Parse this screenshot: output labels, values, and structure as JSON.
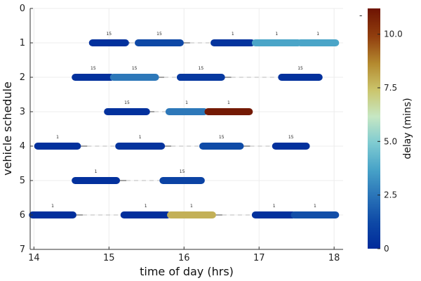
{
  "colors": {
    "scale": [
      "#002a9a",
      "#0e49a6",
      "#2a74b8",
      "#48a3c8",
      "#7fcbd1",
      "#c6e7c3",
      "#cbc56c",
      "#b48a2f",
      "#92400f",
      "#6e1302"
    ],
    "connector": "#c8c8c8",
    "grid": "#ececec",
    "axis": "#333333"
  },
  "chart_data": {
    "type": "gantt",
    "xlabel": "time of day (hrs)",
    "ylabel": "vehicle schedule",
    "xlim": [
      13.95,
      18.12
    ],
    "ylim": [
      0,
      7
    ],
    "xticks": [
      14,
      15,
      16,
      17,
      18
    ],
    "yticks": [
      0,
      1,
      2,
      3,
      4,
      5,
      6,
      7
    ],
    "grid": true,
    "colorbar": {
      "label": "delay (mins)",
      "range": [
        0,
        11.2
      ],
      "ticks": [
        0,
        2.5,
        5.0,
        7.5,
        10.0
      ],
      "tick_labels": [
        "0",
        "2.5",
        "5.0",
        "7.5",
        "10.0"
      ],
      "top_marker": "-"
    },
    "segments": [
      {
        "vehicle": 1,
        "start": 14.78,
        "end": 15.22,
        "label": "15",
        "delay": 0.3
      },
      {
        "vehicle": 1,
        "start": 15.39,
        "end": 15.95,
        "label": "15",
        "delay": 1.2
      },
      {
        "vehicle": 1,
        "start": 16.4,
        "end": 16.9,
        "label": "1",
        "delay": 0.4
      },
      {
        "vehicle": 1,
        "start": 16.95,
        "end": 17.52,
        "label": "1",
        "delay": 3.8
      },
      {
        "vehicle": 1,
        "start": 17.55,
        "end": 18.02,
        "label": "1",
        "delay": 3.8
      },
      {
        "vehicle": 2,
        "start": 14.55,
        "end": 15.03,
        "label": "15",
        "delay": 0.3
      },
      {
        "vehicle": 2,
        "start": 15.06,
        "end": 15.62,
        "label": "15",
        "delay": 2.6
      },
      {
        "vehicle": 2,
        "start": 15.95,
        "end": 16.5,
        "label": "15",
        "delay": 0.6
      },
      {
        "vehicle": 2,
        "start": 17.3,
        "end": 17.8,
        "label": "15",
        "delay": 0.3
      },
      {
        "vehicle": 3,
        "start": 14.98,
        "end": 15.5,
        "label": "15",
        "delay": 0.3
      },
      {
        "vehicle": 3,
        "start": 15.8,
        "end": 16.27,
        "label": "1",
        "delay": 2.6
      },
      {
        "vehicle": 3,
        "start": 16.32,
        "end": 16.87,
        "label": "1",
        "delay": 11.0
      },
      {
        "vehicle": 4,
        "start": 14.05,
        "end": 14.58,
        "label": "1",
        "delay": 0.3
      },
      {
        "vehicle": 4,
        "start": 15.13,
        "end": 15.7,
        "label": "1",
        "delay": 0.4
      },
      {
        "vehicle": 4,
        "start": 16.25,
        "end": 16.75,
        "label": "15",
        "delay": 1.3
      },
      {
        "vehicle": 4,
        "start": 17.22,
        "end": 17.63,
        "label": "15",
        "delay": 0.3
      },
      {
        "vehicle": 5,
        "start": 14.55,
        "end": 15.1,
        "label": "1",
        "delay": 0.3
      },
      {
        "vehicle": 5,
        "start": 15.72,
        "end": 16.23,
        "label": "15",
        "delay": 1.0
      },
      {
        "vehicle": 6,
        "start": 13.98,
        "end": 14.52,
        "label": "1",
        "delay": 0.2
      },
      {
        "vehicle": 6,
        "start": 15.2,
        "end": 15.78,
        "label": "1",
        "delay": 0.2
      },
      {
        "vehicle": 6,
        "start": 15.82,
        "end": 16.38,
        "label": "1",
        "delay": 7.9
      },
      {
        "vehicle": 6,
        "start": 16.95,
        "end": 17.45,
        "label": "1",
        "delay": 0.3
      },
      {
        "vehicle": 6,
        "start": 17.47,
        "end": 18.02,
        "label": "1",
        "delay": 1.4
      }
    ]
  }
}
